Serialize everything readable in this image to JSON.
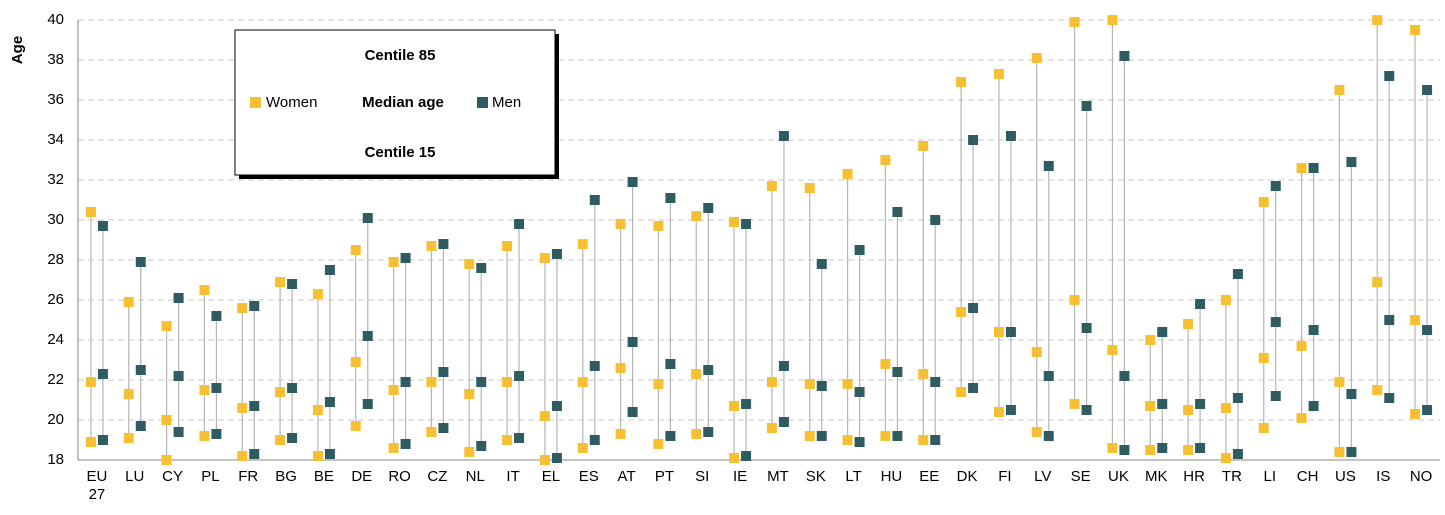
{
  "chart_data": {
    "type": "range-dot",
    "y_label": "Age",
    "ylim": [
      18,
      40
    ],
    "yticks": [
      18,
      20,
      22,
      24,
      26,
      28,
      30,
      32,
      34,
      36,
      38,
      40
    ],
    "grid": true,
    "legend": {
      "top": "Centile 85",
      "middle": "Median age",
      "bottom": "Centile 15"
    },
    "categories": [
      "EU 27",
      "LU",
      "CY",
      "PL",
      "FR",
      "BG",
      "BE",
      "DE",
      "RO",
      "CZ",
      "NL",
      "IT",
      "EL",
      "ES",
      "AT",
      "PT",
      "SI",
      "IE",
      "MT",
      "SK",
      "LT",
      "HU",
      "EE",
      "DK",
      "FI",
      "LV",
      "SE",
      "UK",
      "MK",
      "HR",
      "TR",
      "LI",
      "CH",
      "US",
      "IS",
      "NO"
    ],
    "series": [
      {
        "name": "Women",
        "color": "#f7c033",
        "centile_15": [
          18.9,
          19.1,
          18.0,
          19.2,
          18.2,
          19.0,
          18.2,
          19.7,
          18.6,
          19.4,
          18.4,
          19.0,
          18.0,
          18.6,
          19.3,
          18.8,
          19.3,
          18.1,
          19.6,
          19.2,
          19.0,
          19.2,
          19.0,
          21.4,
          20.4,
          19.4,
          20.8,
          18.6,
          18.5,
          18.5,
          18.1,
          19.6,
          20.1,
          18.4,
          21.5,
          20.3
        ],
        "median": [
          21.9,
          21.3,
          20.0,
          21.5,
          20.6,
          21.4,
          20.5,
          22.9,
          21.5,
          21.9,
          21.3,
          21.9,
          20.2,
          21.9,
          22.6,
          21.8,
          22.3,
          20.7,
          21.9,
          21.8,
          21.8,
          22.8,
          22.3,
          25.4,
          24.4,
          23.4,
          26.0,
          23.5,
          20.7,
          20.5,
          20.6,
          23.1,
          23.7,
          21.9,
          26.9,
          25.0
        ],
        "centile_85": [
          30.4,
          25.9,
          24.7,
          26.5,
          25.6,
          26.9,
          26.3,
          28.5,
          27.9,
          28.7,
          27.8,
          28.7,
          28.1,
          28.8,
          29.8,
          29.7,
          30.2,
          29.9,
          31.7,
          31.6,
          32.3,
          33.0,
          33.7,
          36.9,
          37.3,
          38.1,
          39.9,
          40.0,
          24.0,
          24.8,
          26.0,
          30.9,
          32.6,
          36.5,
          40.0,
          39.5
        ]
      },
      {
        "name": "Men",
        "color": "#2e5c60",
        "centile_15": [
          19.0,
          19.7,
          19.4,
          19.3,
          18.3,
          19.1,
          18.3,
          20.8,
          18.8,
          19.6,
          18.7,
          19.1,
          18.1,
          19.0,
          20.4,
          19.2,
          19.4,
          18.2,
          19.9,
          19.2,
          18.9,
          19.2,
          19.0,
          21.6,
          20.5,
          19.2,
          20.5,
          18.5,
          18.6,
          18.6,
          18.3,
          21.2,
          20.7,
          18.4,
          21.1,
          20.5
        ],
        "median": [
          22.3,
          22.5,
          22.2,
          21.6,
          20.7,
          21.6,
          20.9,
          24.2,
          21.9,
          22.4,
          21.9,
          22.2,
          20.7,
          22.7,
          23.9,
          22.8,
          22.5,
          20.8,
          22.7,
          21.7,
          21.4,
          22.4,
          21.9,
          25.6,
          24.4,
          22.2,
          24.6,
          22.2,
          20.8,
          20.8,
          21.1,
          24.9,
          24.5,
          21.3,
          25.0,
          24.5
        ],
        "centile_85": [
          29.7,
          27.9,
          26.1,
          25.2,
          25.7,
          26.8,
          27.5,
          30.1,
          28.1,
          28.8,
          27.6,
          29.8,
          28.3,
          31.0,
          31.9,
          31.1,
          30.6,
          29.8,
          34.2,
          27.8,
          28.5,
          30.4,
          30.0,
          34.0,
          34.2,
          32.7,
          35.7,
          38.2,
          24.4,
          25.8,
          27.3,
          31.7,
          32.6,
          32.9,
          37.2,
          36.5
        ]
      }
    ]
  }
}
